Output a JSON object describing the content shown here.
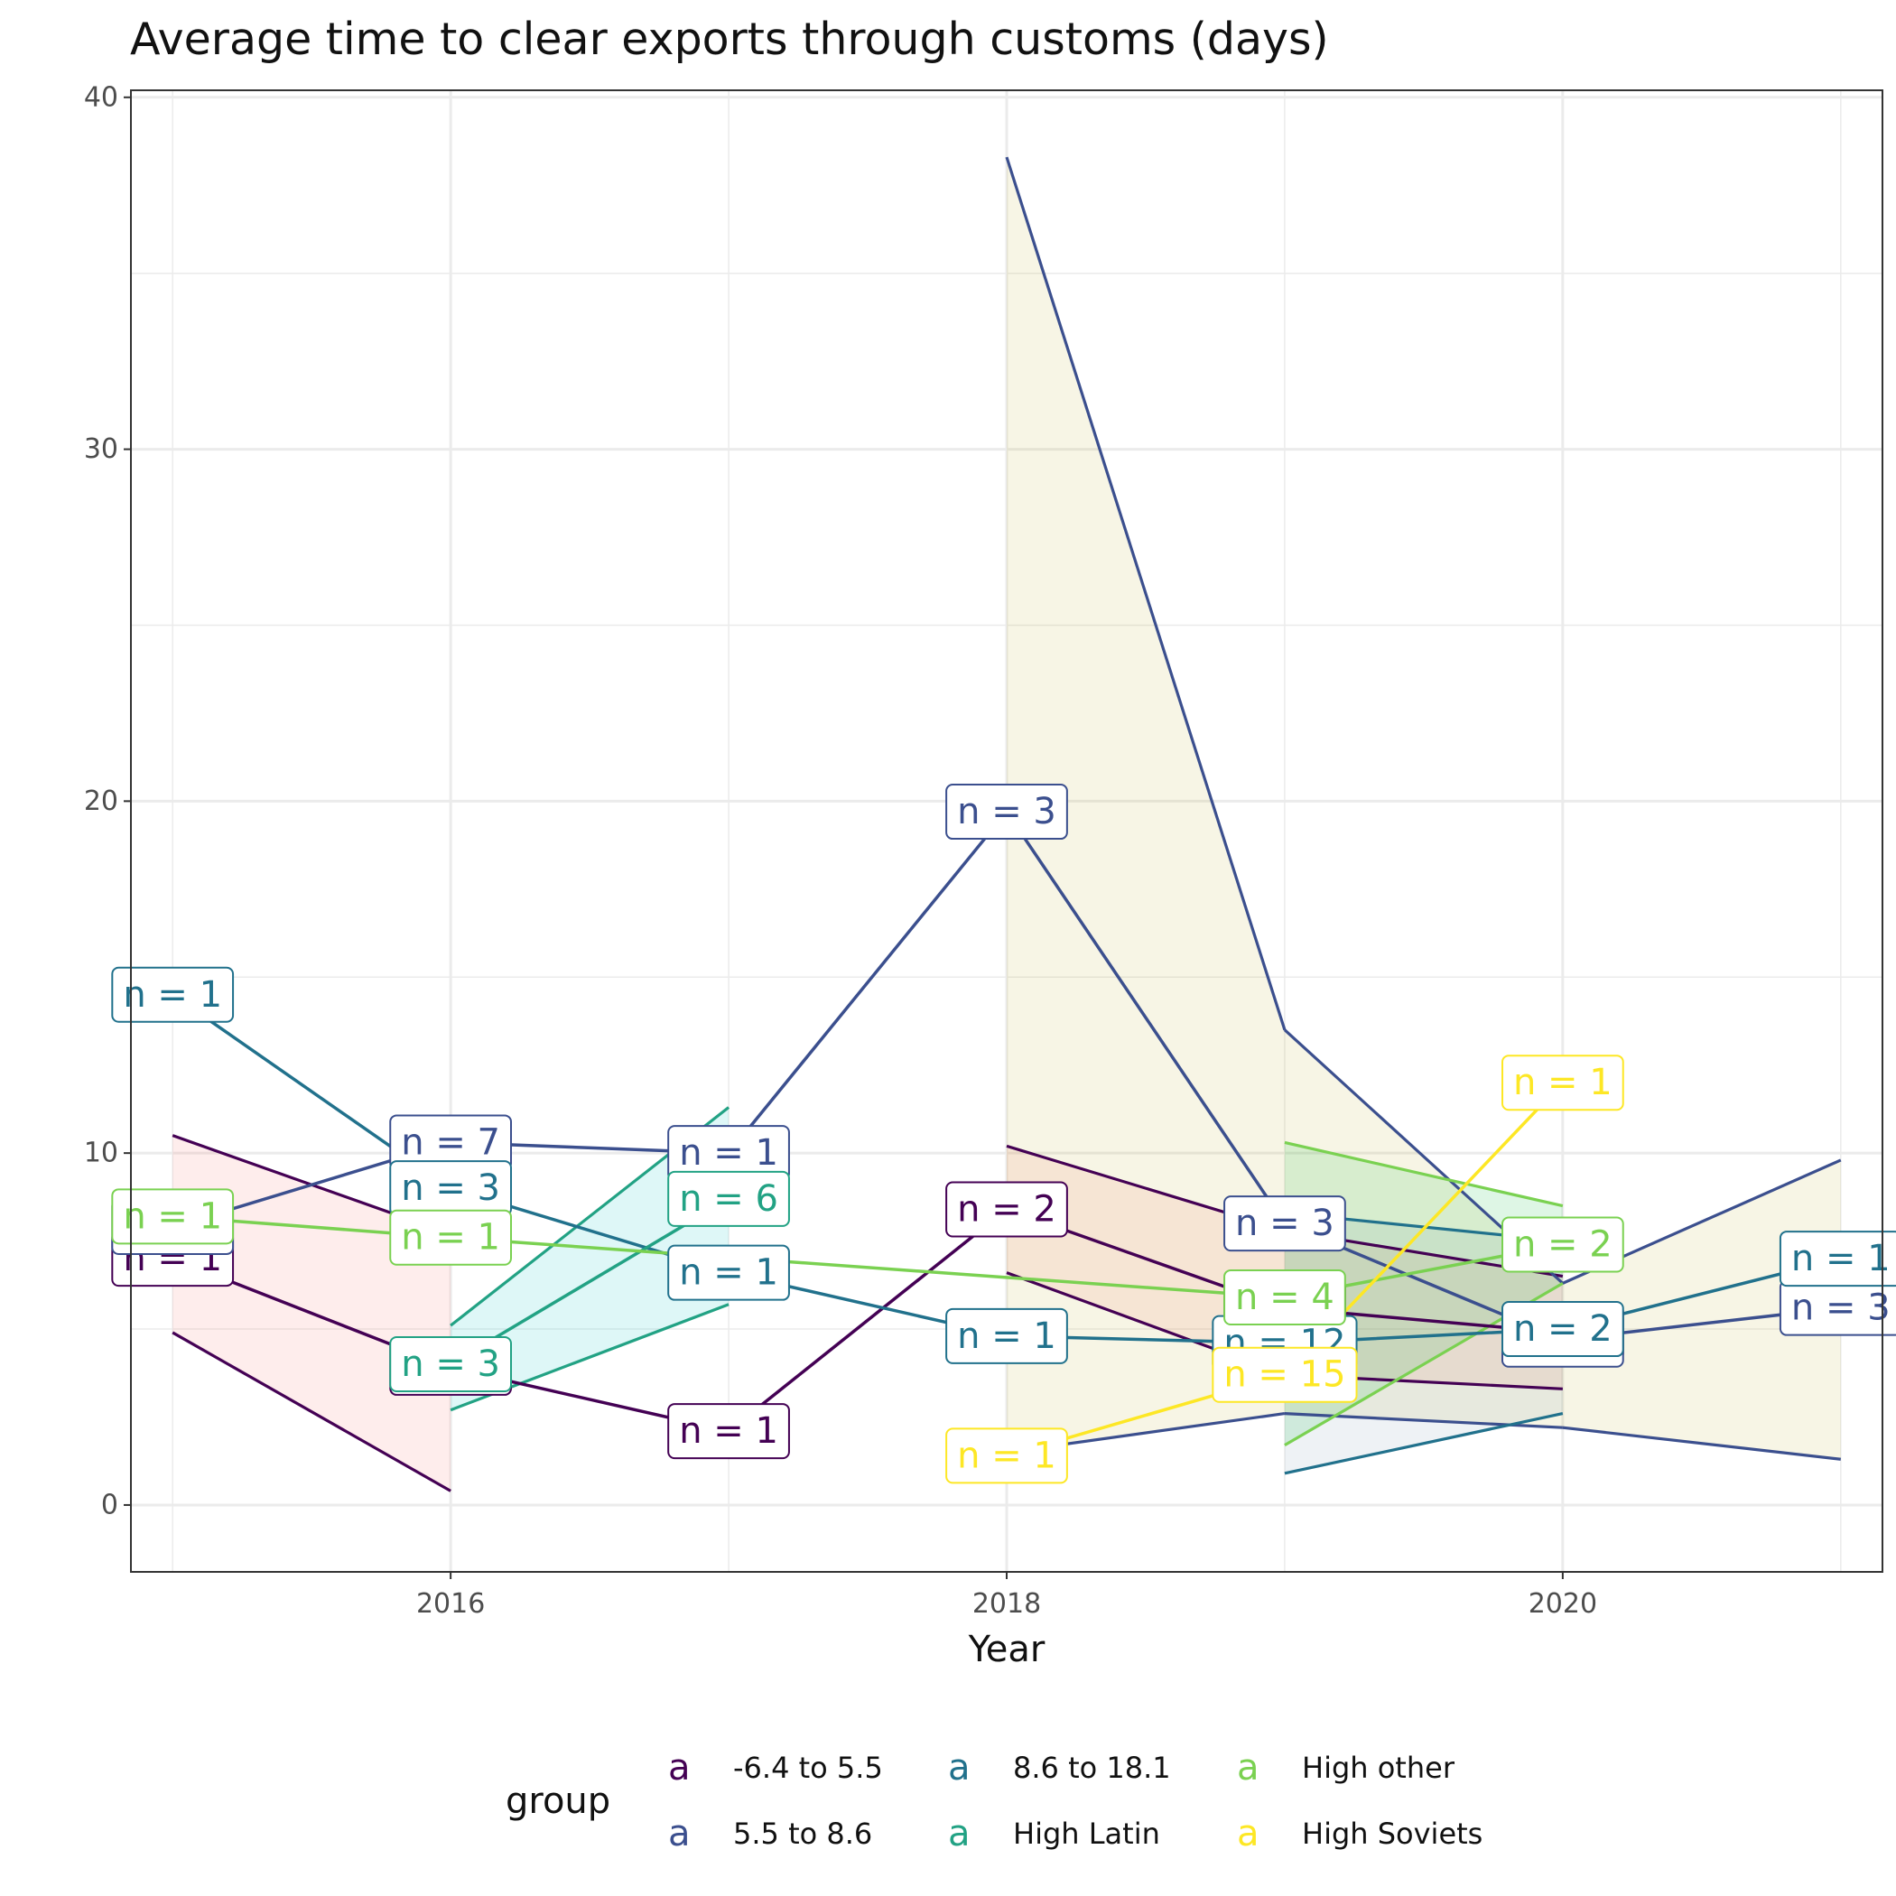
{
  "chart_data": {
    "type": "line",
    "title": "Average time to clear exports through customs (days)",
    "xlabel": "Year",
    "ylabel": "",
    "xlim": [
      2014.85,
      2021.15
    ],
    "ylim": [
      -1.9,
      40.2
    ],
    "x_ticks": [
      2016,
      2018,
      2020
    ],
    "x_minor": [
      2015,
      2017,
      2019,
      2021
    ],
    "y_ticks": [
      0,
      10,
      20,
      30,
      40
    ],
    "y_minor": [
      5,
      15,
      25,
      35
    ],
    "legend": {
      "title": "group",
      "position": "bottom",
      "key_glyph": "a"
    },
    "series": [
      {
        "name": "-6.4 to 5.5",
        "color": "#440154",
        "ribbon_color": "#F8766D",
        "points": [
          {
            "x": 2015,
            "y": 7.0,
            "n": "n = 1",
            "lower": 4.9,
            "upper": 10.5
          },
          {
            "x": 2016,
            "y": 3.9,
            "n": "n = 1",
            "lower": 0.4,
            "upper": 7.7
          },
          {
            "x": 2017,
            "y": 2.1,
            "n": "n = 1"
          },
          {
            "x": 2018,
            "y": 8.4,
            "n": "n = 2",
            "lower": 6.6,
            "upper": 10.2
          },
          {
            "x": 2019,
            "y": 5.6,
            "n": "n = 3",
            "lower": 3.7,
            "upper": 7.8
          },
          {
            "x": 2020,
            "y": 4.9,
            "n": "n = 2",
            "lower": 3.3,
            "upper": 6.5
          }
        ]
      },
      {
        "name": "5.5 to 8.6",
        "color": "#3b4f8e",
        "ribbon_color": "#C4B238",
        "points": [
          {
            "x": 2015,
            "y": 7.9,
            "n": "n = 1"
          },
          {
            "x": 2016,
            "y": 10.3,
            "n": "n = 7"
          },
          {
            "x": 2017,
            "y": 10.0,
            "n": "n = 1"
          },
          {
            "x": 2018,
            "y": 19.7,
            "n": "n = 3",
            "lower": 1.5,
            "upper": 38.3
          },
          {
            "x": 2019,
            "y": 8.0,
            "n": "n = 3",
            "lower": 2.6,
            "upper": 13.5
          },
          {
            "x": 2020,
            "y": 4.7,
            "n": "n = 2",
            "lower": 2.2,
            "upper": 6.3
          },
          {
            "x": 2021,
            "y": 5.6,
            "n": "n = 3",
            "lower": 1.3,
            "upper": 9.8
          }
        ]
      },
      {
        "name": "8.6 to 18.1",
        "color": "#21718c",
        "ribbon_color": "#7B9CB0",
        "points": [
          {
            "x": 2015,
            "y": 14.5,
            "n": "n = 1"
          },
          {
            "x": 2016,
            "y": 9.0,
            "n": "n = 3"
          },
          {
            "x": 2017,
            "y": 6.6,
            "n": "n = 1"
          },
          {
            "x": 2018,
            "y": 4.8,
            "n": "n = 1"
          },
          {
            "x": 2019,
            "y": 4.6,
            "n": "n = 12",
            "lower": 0.9,
            "upper": 8.3
          },
          {
            "x": 2020,
            "y": 5.0,
            "n": "n = 2",
            "lower": 2.6,
            "upper": 7.5
          },
          {
            "x": 2021,
            "y": 7.0,
            "n": "n = 1"
          }
        ]
      },
      {
        "name": "High Latin",
        "color": "#22a284",
        "ribbon_color": "#00BFC4",
        "points": [
          {
            "x": 2016,
            "y": 4.0,
            "n": "n = 3",
            "lower": 2.7,
            "upper": 5.1
          },
          {
            "x": 2017,
            "y": 8.7,
            "n": "n = 6",
            "lower": 5.7,
            "upper": 11.3
          }
        ]
      },
      {
        "name": "High other",
        "color": "#7ad151",
        "ribbon_color": "#00BA38",
        "points": [
          {
            "x": 2015,
            "y": 8.2,
            "n": "n = 1"
          },
          {
            "x": 2016,
            "y": 7.6,
            "n": "n = 1"
          },
          {
            "x": 2019,
            "y": 5.9,
            "n": "n = 4",
            "lower": 1.7,
            "upper": 10.3
          },
          {
            "x": 2020,
            "y": 7.4,
            "n": "n = 2",
            "lower": 6.3,
            "upper": 8.5
          }
        ]
      },
      {
        "name": "High Soviets",
        "color": "#fde725",
        "ribbon_color": "#C4B238",
        "points": [
          {
            "x": 2018,
            "y": 1.4,
            "n": "n = 1"
          },
          {
            "x": 2019,
            "y": 3.7,
            "n": "n = 15"
          },
          {
            "x": 2020,
            "y": 12.0,
            "n": "n = 1"
          }
        ]
      }
    ]
  }
}
